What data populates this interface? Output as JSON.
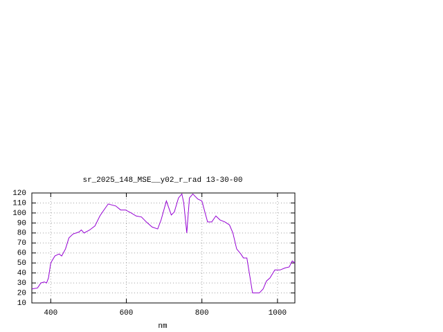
{
  "chart_data": {
    "type": "line",
    "title": "sr_2025_148_MSE__y02_r_rad 13-30-00",
    "xlabel": "nm",
    "x": [
      350,
      365,
      374,
      383,
      389,
      394,
      400,
      411,
      422,
      429,
      439,
      448,
      459,
      475,
      481,
      488,
      503,
      517,
      530,
      539,
      552,
      572,
      585,
      598,
      613,
      626,
      640,
      653,
      668,
      683,
      692,
      706,
      719,
      727,
      738,
      747,
      752,
      760,
      767,
      776,
      789,
      800,
      815,
      826,
      837,
      848,
      861,
      873,
      882,
      892,
      903,
      910,
      919,
      934,
      952,
      962,
      971,
      980,
      993,
      1007,
      1020,
      1031,
      1039,
      1046
    ],
    "series": [
      {
        "color": "#9400d3",
        "values": [
          24,
          25,
          30,
          31,
          30,
          35,
          50,
          57,
          59,
          57,
          64,
          75,
          79,
          81,
          83,
          80,
          83,
          87,
          97,
          102,
          109,
          107,
          103,
          103,
          100,
          97,
          96,
          91,
          86,
          84,
          93,
          112,
          98,
          101,
          115,
          119,
          110,
          80,
          115,
          119,
          114,
          112,
          91,
          91,
          97,
          93,
          91,
          88,
          80,
          64,
          59,
          55,
          55,
          20,
          20,
          24,
          32,
          35,
          43,
          43,
          45,
          46,
          52,
          50
        ]
      }
    ],
    "xlim": [
      350,
      1046
    ],
    "ylim": [
      10,
      120
    ],
    "xticks": [
      400,
      600,
      800,
      1000
    ],
    "yticks": [
      10,
      20,
      30,
      40,
      50,
      60,
      70,
      80,
      90,
      100,
      110,
      120
    ],
    "grid": true
  }
}
